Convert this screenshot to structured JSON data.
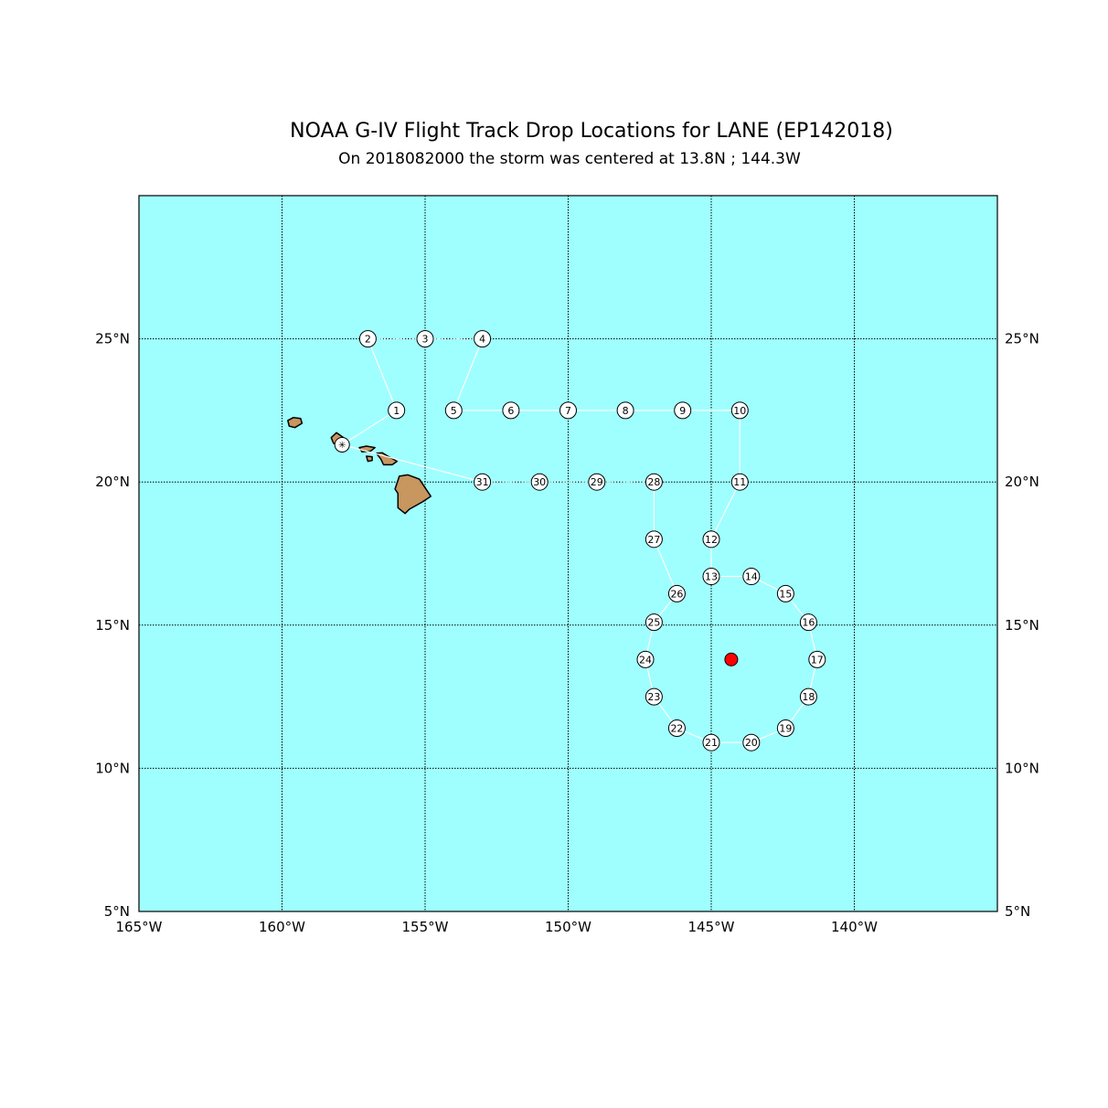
{
  "title": "NOAA G-IV Flight Track Drop Locations for LANE (EP142018)",
  "subtitle": "On 2018082000 the storm was centered at 13.8N ; 144.3W",
  "colors": {
    "ocean": "#9fffff",
    "land": "#c8965f",
    "track": "#ffffff",
    "storm": "#ff0000",
    "grid": "#000000"
  },
  "map": {
    "lon_range": [
      -165,
      -135
    ],
    "lat_range": [
      5,
      30
    ],
    "lon_ticks": [
      {
        "value": -165,
        "label": "165°W"
      },
      {
        "value": -160,
        "label": "160°W"
      },
      {
        "value": -155,
        "label": "155°W"
      },
      {
        "value": -150,
        "label": "150°W"
      },
      {
        "value": -145,
        "label": "145°W"
      },
      {
        "value": -140,
        "label": "140°W"
      }
    ],
    "lat_ticks": [
      {
        "value": 5,
        "label": "5°N"
      },
      {
        "value": 10,
        "label": "10°N"
      },
      {
        "value": 15,
        "label": "15°N"
      },
      {
        "value": 20,
        "label": "20°N"
      },
      {
        "value": 25,
        "label": "25°N"
      }
    ]
  },
  "storm_center": {
    "lat": 13.8,
    "lon": -144.3
  },
  "base": {
    "lat": 21.3,
    "lon": -157.9,
    "icon": "airport-base-icon"
  },
  "track_segments": [
    {
      "from": "base",
      "to": 1,
      "style": "solid"
    },
    {
      "from": 1,
      "to": 2,
      "style": "solid"
    },
    {
      "from": 2,
      "to": 3,
      "style": "dotted"
    },
    {
      "from": 3,
      "to": 4,
      "style": "dotted"
    },
    {
      "from": 4,
      "to": 5,
      "style": "solid"
    },
    {
      "from": 5,
      "to": 6,
      "style": "solid"
    },
    {
      "from": 6,
      "to": 7,
      "style": "solid"
    },
    {
      "from": 7,
      "to": 8,
      "style": "solid"
    },
    {
      "from": 8,
      "to": 9,
      "style": "solid"
    },
    {
      "from": 9,
      "to": 10,
      "style": "solid"
    },
    {
      "from": 10,
      "to": 11,
      "style": "solid"
    },
    {
      "from": 11,
      "to": 12,
      "style": "solid"
    },
    {
      "from": 12,
      "to": 13,
      "style": "solid"
    },
    {
      "from": 13,
      "to": 14,
      "style": "solid"
    },
    {
      "from": 14,
      "to": 15,
      "style": "solid"
    },
    {
      "from": 15,
      "to": 16,
      "style": "solid"
    },
    {
      "from": 16,
      "to": 17,
      "style": "solid"
    },
    {
      "from": 17,
      "to": 18,
      "style": "solid"
    },
    {
      "from": 18,
      "to": 19,
      "style": "solid"
    },
    {
      "from": 19,
      "to": 20,
      "style": "solid"
    },
    {
      "from": 20,
      "to": 21,
      "style": "solid"
    },
    {
      "from": 21,
      "to": 22,
      "style": "solid"
    },
    {
      "from": 22,
      "to": 23,
      "style": "solid"
    },
    {
      "from": 23,
      "to": 24,
      "style": "solid"
    },
    {
      "from": 24,
      "to": 25,
      "style": "solid"
    },
    {
      "from": 25,
      "to": 26,
      "style": "solid"
    },
    {
      "from": 26,
      "to": 27,
      "style": "solid"
    },
    {
      "from": 27,
      "to": 28,
      "style": "solid"
    },
    {
      "from": 28,
      "to": 29,
      "style": "dotted"
    },
    {
      "from": 29,
      "to": 30,
      "style": "dotted"
    },
    {
      "from": 30,
      "to": 31,
      "style": "dotted"
    },
    {
      "from": 31,
      "to": "base",
      "style": "solid"
    }
  ],
  "drops": [
    {
      "id": 1,
      "label": "1",
      "lat": 22.5,
      "lon": -156.0
    },
    {
      "id": 2,
      "label": "2",
      "lat": 25.0,
      "lon": -157.0
    },
    {
      "id": 3,
      "label": "3",
      "lat": 25.0,
      "lon": -155.0
    },
    {
      "id": 4,
      "label": "4",
      "lat": 25.0,
      "lon": -153.0
    },
    {
      "id": 5,
      "label": "5",
      "lat": 22.5,
      "lon": -154.0
    },
    {
      "id": 6,
      "label": "6",
      "lat": 22.5,
      "lon": -152.0
    },
    {
      "id": 7,
      "label": "7",
      "lat": 22.5,
      "lon": -150.0
    },
    {
      "id": 8,
      "label": "8",
      "lat": 22.5,
      "lon": -148.0
    },
    {
      "id": 9,
      "label": "9",
      "lat": 22.5,
      "lon": -146.0
    },
    {
      "id": 10,
      "label": "10",
      "lat": 22.5,
      "lon": -144.0
    },
    {
      "id": 11,
      "label": "11",
      "lat": 20.0,
      "lon": -144.0
    },
    {
      "id": 12,
      "label": "12",
      "lat": 18.0,
      "lon": -145.0
    },
    {
      "id": 13,
      "label": "13",
      "lat": 16.7,
      "lon": -145.0
    },
    {
      "id": 14,
      "label": "14",
      "lat": 16.7,
      "lon": -143.6
    },
    {
      "id": 15,
      "label": "15",
      "lat": 16.1,
      "lon": -142.4
    },
    {
      "id": 16,
      "label": "16",
      "lat": 15.1,
      "lon": -141.6
    },
    {
      "id": 17,
      "label": "17",
      "lat": 13.8,
      "lon": -141.3
    },
    {
      "id": 18,
      "label": "18",
      "lat": 12.5,
      "lon": -141.6
    },
    {
      "id": 19,
      "label": "19",
      "lat": 11.4,
      "lon": -142.4
    },
    {
      "id": 20,
      "label": "20",
      "lat": 10.9,
      "lon": -143.6
    },
    {
      "id": 21,
      "label": "21",
      "lat": 10.9,
      "lon": -145.0
    },
    {
      "id": 22,
      "label": "22",
      "lat": 11.4,
      "lon": -146.2
    },
    {
      "id": 23,
      "label": "23",
      "lat": 12.5,
      "lon": -147.0
    },
    {
      "id": 24,
      "label": "24",
      "lat": 13.8,
      "lon": -147.3
    },
    {
      "id": 25,
      "label": "25",
      "lat": 15.1,
      "lon": -147.0
    },
    {
      "id": 26,
      "label": "26",
      "lat": 16.1,
      "lon": -146.2
    },
    {
      "id": 27,
      "label": "27",
      "lat": 18.0,
      "lon": -147.0
    },
    {
      "id": 28,
      "label": "28",
      "lat": 20.0,
      "lon": -147.0
    },
    {
      "id": 29,
      "label": "29",
      "lat": 20.0,
      "lon": -149.0
    },
    {
      "id": 30,
      "label": "30",
      "lat": 20.0,
      "lon": -151.0
    },
    {
      "id": 31,
      "label": "31",
      "lat": 20.0,
      "lon": -153.0
    }
  ],
  "islands": [
    {
      "name": "kauai",
      "coords": [
        [
          -159.8,
          22.15
        ],
        [
          -159.6,
          22.25
        ],
        [
          -159.35,
          22.22
        ],
        [
          -159.3,
          22.05
        ],
        [
          -159.55,
          21.9
        ],
        [
          -159.75,
          21.95
        ]
      ]
    },
    {
      "name": "oahu",
      "coords": [
        [
          -158.28,
          21.55
        ],
        [
          -158.1,
          21.72
        ],
        [
          -157.85,
          21.55
        ],
        [
          -157.72,
          21.3
        ],
        [
          -157.95,
          21.25
        ],
        [
          -158.2,
          21.35
        ]
      ]
    },
    {
      "name": "molokai",
      "coords": [
        [
          -157.3,
          21.2
        ],
        [
          -157.2,
          21.05
        ],
        [
          -156.9,
          21.08
        ],
        [
          -156.75,
          21.2
        ],
        [
          -157.05,
          21.25
        ]
      ]
    },
    {
      "name": "maui",
      "coords": [
        [
          -156.7,
          21.0
        ],
        [
          -156.5,
          21.02
        ],
        [
          -156.3,
          20.9
        ],
        [
          -155.98,
          20.72
        ],
        [
          -156.15,
          20.6
        ],
        [
          -156.45,
          20.6
        ],
        [
          -156.55,
          20.8
        ]
      ]
    },
    {
      "name": "lanai",
      "coords": [
        [
          -157.05,
          20.9
        ],
        [
          -156.85,
          20.88
        ],
        [
          -156.85,
          20.75
        ],
        [
          -157.0,
          20.72
        ]
      ]
    },
    {
      "name": "big-island",
      "coords": [
        [
          -155.9,
          20.2
        ],
        [
          -155.6,
          20.25
        ],
        [
          -155.2,
          20.1
        ],
        [
          -154.8,
          19.5
        ],
        [
          -155.1,
          19.3
        ],
        [
          -155.55,
          19.05
        ],
        [
          -155.7,
          18.9
        ],
        [
          -155.95,
          19.1
        ],
        [
          -155.95,
          19.6
        ],
        [
          -156.05,
          19.75
        ]
      ]
    }
  ]
}
